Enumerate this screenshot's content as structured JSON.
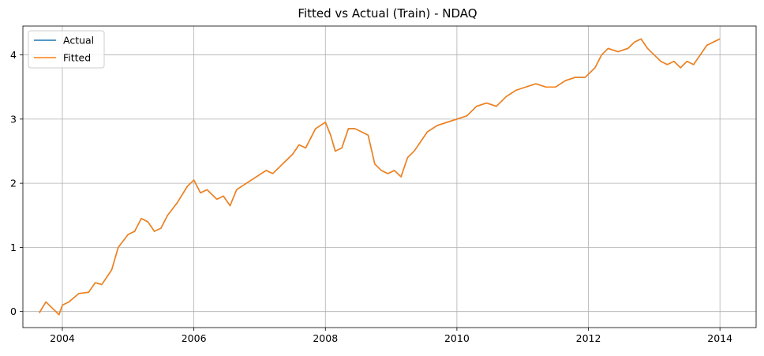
{
  "chart_data": {
    "type": "line",
    "title": "Fitted vs Actual (Train) - NDAQ",
    "xlabel": "",
    "ylabel": "",
    "x_range": [
      2003.4,
      2014.55
    ],
    "ylim": [
      -0.25,
      4.45
    ],
    "x_ticks": [
      2004,
      2006,
      2008,
      2010,
      2012,
      2014
    ],
    "x_tick_labels": [
      "2004",
      "2006",
      "2008",
      "2010",
      "2012",
      "2014"
    ],
    "y_ticks": [
      0,
      1,
      2,
      3,
      4
    ],
    "y_tick_labels": [
      "0",
      "1",
      "2",
      "3",
      "4"
    ],
    "grid": true,
    "legend_position": "top-left",
    "series": [
      {
        "name": "Actual",
        "color": "#1f77b4",
        "x": [
          2003.65,
          2003.75,
          2003.85,
          2003.95,
          2004.0,
          2004.1,
          2004.25,
          2004.4,
          2004.5,
          2004.6,
          2004.75,
          2004.85,
          2005.0,
          2005.1,
          2005.2,
          2005.3,
          2005.4,
          2005.5,
          2005.6,
          2005.75,
          2005.9,
          2006.0,
          2006.1,
          2006.2,
          2006.35,
          2006.45,
          2006.55,
          2006.65,
          2006.8,
          2006.95,
          2007.1,
          2007.2,
          2007.35,
          2007.5,
          2007.6,
          2007.7,
          2007.85,
          2008.0,
          2008.08,
          2008.15,
          2008.25,
          2008.35,
          2008.45,
          2008.55,
          2008.65,
          2008.75,
          2008.85,
          2008.95,
          2009.05,
          2009.15,
          2009.25,
          2009.35,
          2009.45,
          2009.55,
          2009.7,
          2009.85,
          2010.0,
          2010.15,
          2010.3,
          2010.45,
          2010.6,
          2010.75,
          2010.9,
          2011.05,
          2011.2,
          2011.35,
          2011.5,
          2011.65,
          2011.8,
          2011.95,
          2012.1,
          2012.2,
          2012.3,
          2012.45,
          2012.6,
          2012.7,
          2012.8,
          2012.9,
          2013.0,
          2013.1,
          2013.2,
          2013.3,
          2013.4,
          2013.5,
          2013.6,
          2013.7,
          2013.8,
          2013.9,
          2014.0
        ],
        "values": [
          -0.02,
          0.15,
          0.05,
          -0.05,
          0.1,
          0.15,
          0.28,
          0.3,
          0.45,
          0.42,
          0.65,
          1.0,
          1.2,
          1.25,
          1.45,
          1.4,
          1.25,
          1.3,
          1.5,
          1.7,
          1.95,
          2.05,
          1.85,
          1.9,
          1.75,
          1.8,
          1.65,
          1.9,
          2.0,
          2.1,
          2.2,
          2.15,
          2.3,
          2.45,
          2.6,
          2.55,
          2.85,
          2.95,
          2.75,
          2.5,
          2.55,
          2.85,
          2.85,
          2.8,
          2.75,
          2.3,
          2.2,
          2.15,
          2.2,
          2.1,
          2.4,
          2.5,
          2.65,
          2.8,
          2.9,
          2.95,
          3.0,
          3.05,
          3.2,
          3.25,
          3.2,
          3.35,
          3.45,
          3.5,
          3.55,
          3.5,
          3.5,
          3.6,
          3.65,
          3.65,
          3.8,
          4.0,
          4.1,
          4.05,
          4.1,
          4.2,
          4.25,
          4.1,
          4.0,
          3.9,
          3.85,
          3.9,
          3.8,
          3.9,
          3.85,
          4.0,
          4.15,
          4.2,
          4.25
        ]
      },
      {
        "name": "Fitted",
        "color": "#ff7f0e",
        "x": [
          2003.65,
          2003.75,
          2003.85,
          2003.95,
          2004.0,
          2004.1,
          2004.25,
          2004.4,
          2004.5,
          2004.6,
          2004.75,
          2004.85,
          2005.0,
          2005.1,
          2005.2,
          2005.3,
          2005.4,
          2005.5,
          2005.6,
          2005.75,
          2005.9,
          2006.0,
          2006.1,
          2006.2,
          2006.35,
          2006.45,
          2006.55,
          2006.65,
          2006.8,
          2006.95,
          2007.1,
          2007.2,
          2007.35,
          2007.5,
          2007.6,
          2007.7,
          2007.85,
          2008.0,
          2008.08,
          2008.15,
          2008.25,
          2008.35,
          2008.45,
          2008.55,
          2008.65,
          2008.75,
          2008.85,
          2008.95,
          2009.05,
          2009.15,
          2009.25,
          2009.35,
          2009.45,
          2009.55,
          2009.7,
          2009.85,
          2010.0,
          2010.15,
          2010.3,
          2010.45,
          2010.6,
          2010.75,
          2010.9,
          2011.05,
          2011.2,
          2011.35,
          2011.5,
          2011.65,
          2011.8,
          2011.95,
          2012.1,
          2012.2,
          2012.3,
          2012.45,
          2012.6,
          2012.7,
          2012.8,
          2012.9,
          2013.0,
          2013.1,
          2013.2,
          2013.3,
          2013.4,
          2013.5,
          2013.6,
          2013.7,
          2013.8,
          2013.9,
          2014.0
        ],
        "values": [
          -0.02,
          0.15,
          0.05,
          -0.05,
          0.1,
          0.15,
          0.28,
          0.3,
          0.45,
          0.42,
          0.65,
          1.0,
          1.2,
          1.25,
          1.45,
          1.4,
          1.25,
          1.3,
          1.5,
          1.7,
          1.95,
          2.05,
          1.85,
          1.9,
          1.75,
          1.8,
          1.65,
          1.9,
          2.0,
          2.1,
          2.2,
          2.15,
          2.3,
          2.45,
          2.6,
          2.55,
          2.85,
          2.95,
          2.75,
          2.5,
          2.55,
          2.85,
          2.85,
          2.8,
          2.75,
          2.3,
          2.2,
          2.15,
          2.2,
          2.1,
          2.4,
          2.5,
          2.65,
          2.8,
          2.9,
          2.95,
          3.0,
          3.05,
          3.2,
          3.25,
          3.2,
          3.35,
          3.45,
          3.5,
          3.55,
          3.5,
          3.5,
          3.6,
          3.65,
          3.65,
          3.8,
          4.0,
          4.1,
          4.05,
          4.1,
          4.2,
          4.25,
          4.1,
          4.0,
          3.9,
          3.85,
          3.9,
          3.8,
          3.9,
          3.85,
          4.0,
          4.15,
          4.2,
          4.25
        ]
      }
    ]
  }
}
